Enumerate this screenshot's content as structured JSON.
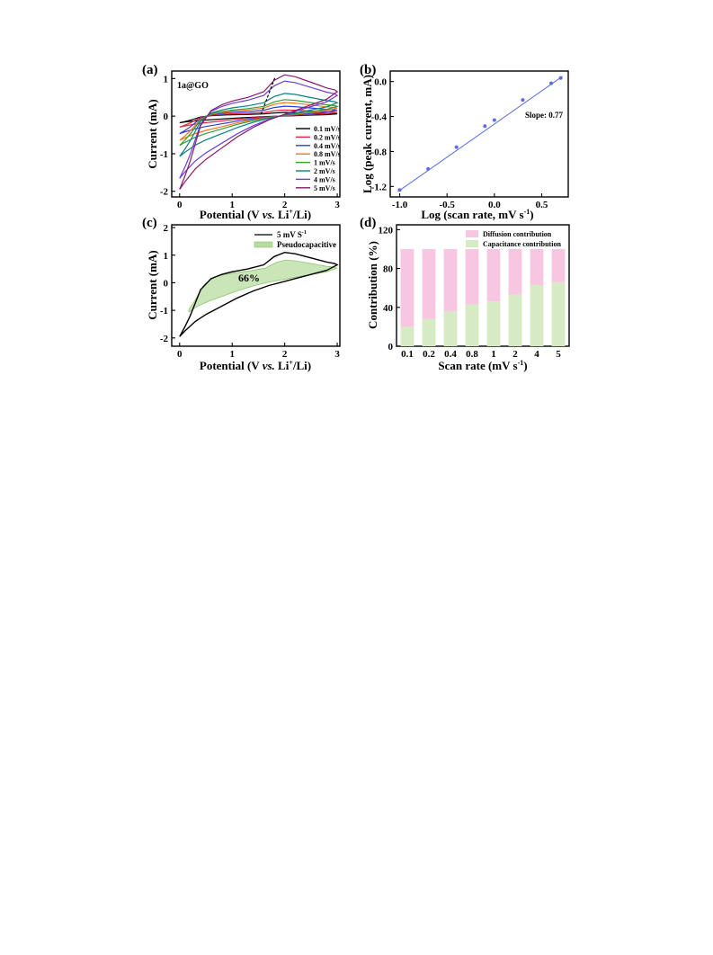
{
  "chart_data": [
    {
      "panel": "(a)",
      "type": "line",
      "annotation": "1a@GO",
      "xlabel_parts": [
        "Potential (V ",
        "vs.",
        " Li",
        "+",
        "/Li)"
      ],
      "ylabel": "Current (mA)",
      "xlim": [
        -0.15,
        3.05
      ],
      "ylim": [
        -2.15,
        1.2
      ],
      "xticks": [
        0,
        1,
        2,
        3
      ],
      "yticks": [
        -2,
        -1,
        0,
        1
      ],
      "legend_position": "bottom-right",
      "series": [
        {
          "name": "0.1 mV/s",
          "color": "#000000",
          "scale": 0.09
        },
        {
          "name": "0.2 mV/s",
          "color": "#e8243c",
          "scale": 0.15
        },
        {
          "name": "0.4 mV/s",
          "color": "#2f3fd8",
          "scale": 0.24
        },
        {
          "name": "0.8 mV/s",
          "color": "#f07a1a",
          "scale": 0.33
        },
        {
          "name": "1 mV/s",
          "color": "#3a9a3a",
          "scale": 0.4
        },
        {
          "name": "2 mV/s",
          "color": "#0f7f80",
          "scale": 0.55
        },
        {
          "name": "4 mV/s",
          "color": "#6b3fd8",
          "scale": 0.85
        },
        {
          "name": "5 mV/s",
          "color": "#8a1a6a",
          "scale": 1.0
        }
      ],
      "reference_curve_5mVs": {
        "anodic": [
          [
            0.0,
            -1.95
          ],
          [
            0.1,
            -1.6
          ],
          [
            0.2,
            -1.2
          ],
          [
            0.4,
            -0.25
          ],
          [
            0.6,
            0.15
          ],
          [
            0.8,
            0.3
          ],
          [
            1.0,
            0.4
          ],
          [
            1.3,
            0.5
          ],
          [
            1.6,
            0.65
          ],
          [
            1.8,
            0.95
          ],
          [
            2.0,
            1.1
          ],
          [
            2.2,
            1.05
          ],
          [
            2.5,
            0.9
          ],
          [
            2.8,
            0.75
          ],
          [
            2.95,
            0.7
          ],
          [
            3.0,
            0.65
          ]
        ],
        "cathodic": [
          [
            3.0,
            0.65
          ],
          [
            2.8,
            0.45
          ],
          [
            2.5,
            0.3
          ],
          [
            2.2,
            0.15
          ],
          [
            2.0,
            0.05
          ],
          [
            1.7,
            -0.1
          ],
          [
            1.4,
            -0.3
          ],
          [
            1.1,
            -0.55
          ],
          [
            0.8,
            -0.85
          ],
          [
            0.5,
            -1.15
          ],
          [
            0.3,
            -1.4
          ],
          [
            0.1,
            -1.75
          ],
          [
            0.0,
            -1.95
          ]
        ]
      },
      "peak_shift_arrow": {
        "from": [
          1.55,
          0.05
        ],
        "to": [
          1.82,
          1.05
        ]
      }
    },
    {
      "panel": "(b)",
      "type": "scatter",
      "xlabel": "Log (scan rate, mV s",
      "xlabel_sup": "-1",
      "xlabel_end": ")",
      "ylabel": "Log (peak current, mA)",
      "xlim": [
        -1.1,
        0.78
      ],
      "ylim": [
        -1.32,
        0.12
      ],
      "xticks": [
        -1.0,
        -0.5,
        0.0,
        0.5
      ],
      "xtick_labels": [
        "-1.0",
        "-0.5",
        "0.0",
        "0.5"
      ],
      "yticks": [
        -1.2,
        -0.8,
        -0.4,
        0.0
      ],
      "ytick_labels": [
        "-1.2",
        "-0.8",
        "-0.4",
        "0.0"
      ],
      "annotation": "Slope: 0.77",
      "color": "#5a6ee0",
      "points": [
        [
          -1.0,
          -1.24
        ],
        [
          -0.7,
          -1.0
        ],
        [
          -0.4,
          -0.75
        ],
        [
          -0.1,
          -0.51
        ],
        [
          0.0,
          -0.44
        ],
        [
          0.3,
          -0.21
        ],
        [
          0.6,
          -0.02
        ],
        [
          0.7,
          0.04
        ]
      ],
      "fit_line": [
        [
          -1.02,
          -1.26
        ],
        [
          0.72,
          0.06
        ]
      ]
    },
    {
      "panel": "(c)",
      "type": "area",
      "xlabel_parts": [
        "Potential (V ",
        "vs.",
        " Li",
        "+",
        "/Li)"
      ],
      "ylabel": "Current (mA)",
      "xlim": [
        -0.15,
        3.05
      ],
      "ylim": [
        -2.3,
        2.1
      ],
      "xticks": [
        0,
        1,
        2,
        3
      ],
      "yticks": [
        -2,
        -1,
        0,
        1,
        2
      ],
      "legend_position": "top-right",
      "series": [
        {
          "name": "5 mV S",
          "name_sup": "-1",
          "color": "#000000"
        },
        {
          "name": "Pseudocapacitive",
          "color": "#b8dca0"
        }
      ],
      "annotation": "66%",
      "pseudo_fraction": 0.66
    },
    {
      "panel": "(d)",
      "type": "bar",
      "categories": [
        "0.1",
        "0.2",
        "0.4",
        "0.8",
        "1",
        "2",
        "4",
        "5"
      ],
      "xlabel": "Scan rate (mV s",
      "xlabel_sup": "-1",
      "xlabel_end": ")",
      "ylabel": "Contribution (%)",
      "ylim": [
        0,
        125
      ],
      "yticks": [
        0,
        40,
        80,
        120
      ],
      "legend_position": "top",
      "series": [
        {
          "name": "Diffusion contribution",
          "color": "#f7c6e0",
          "values": [
            80,
            72,
            64,
            57,
            54,
            47,
            37,
            34
          ]
        },
        {
          "name": "Capacitance contribution",
          "color": "#d6ebc4",
          "values": [
            20,
            28,
            36,
            43,
            46,
            53,
            63,
            66
          ]
        }
      ]
    }
  ]
}
